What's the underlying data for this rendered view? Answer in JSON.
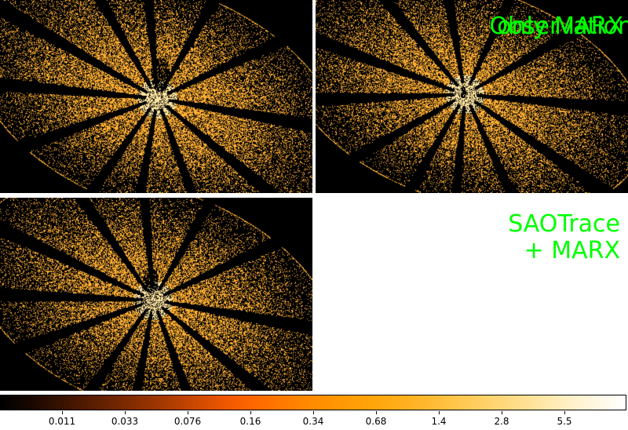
{
  "panels": [
    {
      "id": "observation",
      "label_lines": [
        "Observation"
      ]
    },
    {
      "id": "only-marx",
      "label_lines": [
        "only MARX"
      ]
    },
    {
      "id": "saotrace-marx",
      "label_lines": [
        "SAOTrace",
        "+ MARX"
      ]
    }
  ],
  "colorbar": {
    "colormap": "heat",
    "ticks": [
      "0.011",
      "0.033",
      "0.076",
      "0.16",
      "0.34",
      "0.68",
      "1.4",
      "2.8",
      "5.5"
    ]
  },
  "colors": {
    "label": "#00ff00",
    "background": "#000000",
    "point": "#ffa533"
  }
}
